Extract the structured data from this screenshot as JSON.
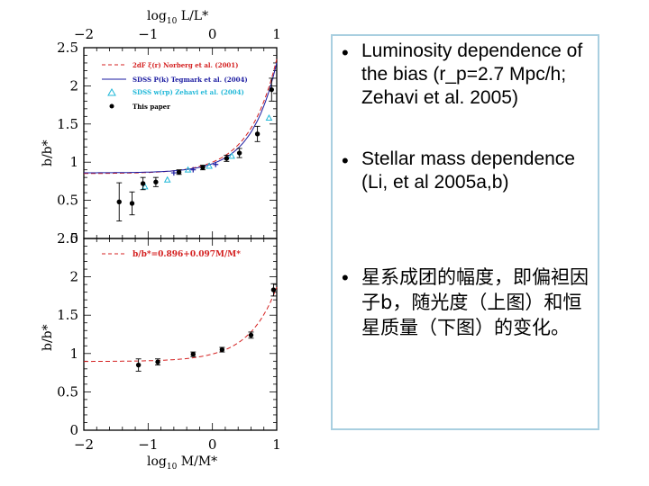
{
  "chart_data": [
    {
      "type": "scatter",
      "panel": "top",
      "xlabel_top": "log10 L/L*",
      "ylabel": "b/b*",
      "xlim": [
        -2,
        1
      ],
      "ylim": [
        0,
        2.5
      ],
      "xticks": [
        "−2",
        "−1",
        "0",
        "1"
      ],
      "yticks": [
        "0",
        "0.5",
        "1",
        "1.5",
        "2",
        "2.5"
      ],
      "legend": [
        {
          "label": "2dF ξ(r) Norberg et al. (2001)",
          "color": "#d42020",
          "style": "dashed"
        },
        {
          "label": "SDSS P(k) Tegmark et al. (2004)",
          "color": "#1a1aa0",
          "style": "solid"
        },
        {
          "label": "SDSS w(rp) Zehavi et al. (2004)",
          "color": "#20b8d8",
          "style": "triangle"
        },
        {
          "label": "This paper",
          "color": "#000000",
          "style": "point"
        }
      ],
      "series": [
        {
          "name": "This paper",
          "points": [
            {
              "x": -1.45,
              "y": 0.48,
              "err": 0.25
            },
            {
              "x": -1.25,
              "y": 0.46,
              "err": 0.15
            },
            {
              "x": -1.08,
              "y": 0.72,
              "err": 0.08
            },
            {
              "x": -0.88,
              "y": 0.74,
              "err": 0.06
            },
            {
              "x": -0.52,
              "y": 0.87,
              "err": 0.03
            },
            {
              "x": -0.15,
              "y": 0.93,
              "err": 0.03
            },
            {
              "x": 0.22,
              "y": 1.05,
              "err": 0.04
            },
            {
              "x": 0.42,
              "y": 1.12,
              "err": 0.06
            },
            {
              "x": 0.7,
              "y": 1.37,
              "err": 0.1
            },
            {
              "x": 0.92,
              "y": 1.95,
              "err": 0.15
            }
          ]
        },
        {
          "name": "SDSS w(rp) Zehavi et al. (2004)",
          "points": [
            {
              "x": -1.05,
              "y": 0.68
            },
            {
              "x": -0.7,
              "y": 0.77
            },
            {
              "x": -0.38,
              "y": 0.9
            },
            {
              "x": -0.05,
              "y": 0.95
            },
            {
              "x": 0.3,
              "y": 1.08
            },
            {
              "x": 0.88,
              "y": 1.58
            }
          ]
        },
        {
          "name": "SDSS P(k) Tegmark et al. (2004)",
          "points": [
            {
              "x": -0.6,
              "y": 0.86
            },
            {
              "x": -0.3,
              "y": 0.9
            },
            {
              "x": 0.05,
              "y": 0.97
            }
          ]
        }
      ]
    },
    {
      "type": "scatter",
      "panel": "bottom",
      "xlabel": "log10 M/M*",
      "ylabel": "b/b*",
      "xlim": [
        -2,
        1
      ],
      "ylim": [
        0,
        2.5
      ],
      "xticks": [
        "−2",
        "−1",
        "0",
        "1"
      ],
      "yticks": [
        "0",
        "0.5",
        "1",
        "1.5",
        "2",
        "2.5"
      ],
      "legend": [
        {
          "label": "b/b*=0.896+0.097M/M*",
          "color": "#d42020",
          "style": "dashed"
        }
      ],
      "series": [
        {
          "name": "This paper",
          "points": [
            {
              "x": -1.15,
              "y": 0.85,
              "err": 0.08
            },
            {
              "x": -0.85,
              "y": 0.89,
              "err": 0.04
            },
            {
              "x": -0.3,
              "y": 0.99,
              "err": 0.03
            },
            {
              "x": 0.15,
              "y": 1.05,
              "err": 0.03
            },
            {
              "x": 0.6,
              "y": 1.24,
              "err": 0.04
            },
            {
              "x": 0.95,
              "y": 1.83,
              "err": 0.08
            }
          ]
        }
      ]
    }
  ],
  "text_panel": {
    "bullet_symbol": "•",
    "bullet1": "Luminosity dependence of the bias (r_p=2.7 Mpc/h; Zehavi et al. 2005)",
    "bullet2": "Stellar mass dependence (Li, et al 2005a,b)",
    "bullet3": "星系成团的幅度，即偏袒因子b，随光度（上图）和恒星质量（下图）的变化。"
  }
}
